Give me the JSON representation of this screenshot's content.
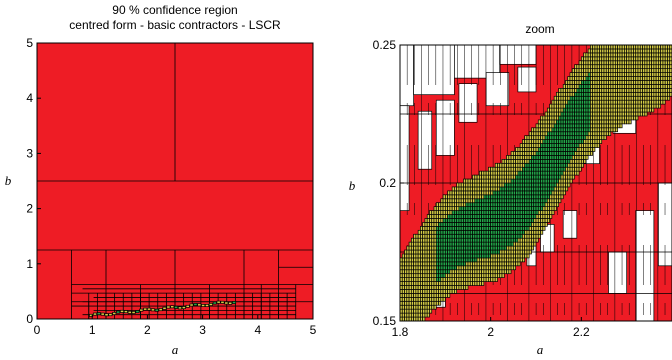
{
  "chart_data": [
    {
      "type": "other",
      "title": "90 % confidence region",
      "subtitle": "centred form - basic contractors - LSCR",
      "xlabel": "a",
      "ylabel": "b",
      "xlim": [
        0,
        5
      ],
      "ylim": [
        0,
        5
      ],
      "xticks": [
        "0",
        "1",
        "2",
        "3",
        "4",
        "5"
      ],
      "yticks": [
        "0",
        "1",
        "2",
        "3",
        "4",
        "5"
      ],
      "colors": {
        "outside": "#ee1c25",
        "undetermined": "#d4cc46",
        "inside": "#23a84a",
        "edge": "#000000"
      }
    },
    {
      "type": "other",
      "title": "zoom",
      "xlabel": "a",
      "ylabel": "b",
      "xlim": [
        1.8,
        2.4
      ],
      "ylim": [
        0.15,
        0.25
      ],
      "xticks": [
        "1.8",
        "2",
        "2.2"
      ],
      "yticks": [
        "0.15",
        "0.2",
        "0.25"
      ],
      "colors": {
        "outside": "#ee1c25",
        "undetermined": "#d4cc46",
        "inside": "#23a84a",
        "edge": "#000000"
      }
    }
  ]
}
